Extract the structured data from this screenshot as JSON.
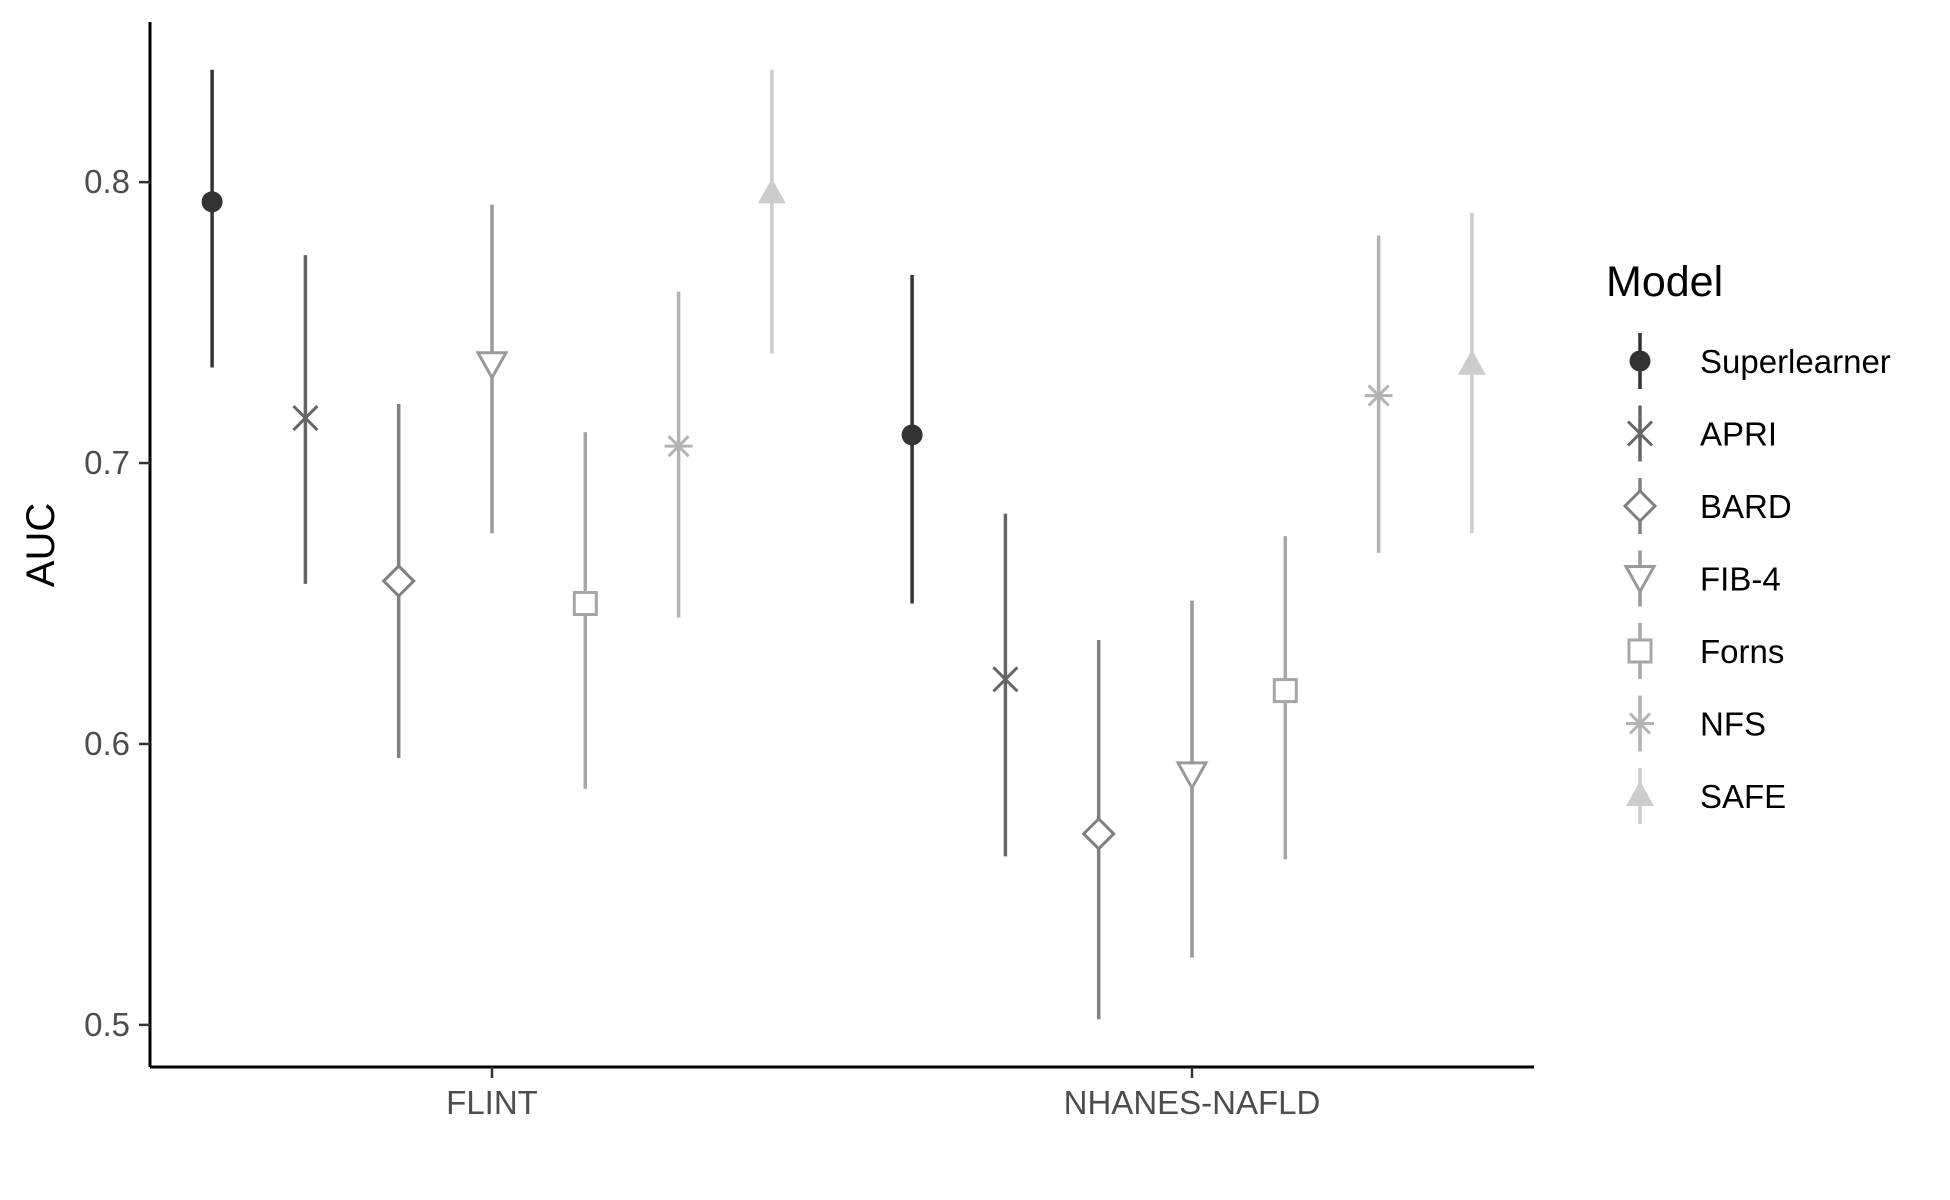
{
  "chart_data": {
    "type": "scatter",
    "subtype": "pointrange",
    "title": "",
    "xlabel": "",
    "ylabel": "AUC",
    "categories": [
      "FLINT",
      "NHANES-NAFLD"
    ],
    "ylim": [
      0.485,
      0.857
    ],
    "yticks": [
      "0.5",
      "0.6",
      "0.7",
      "0.8"
    ],
    "grid": false,
    "legend": {
      "title": "Model",
      "position": "right"
    },
    "series": [
      {
        "name": "Superlearner",
        "shape": "filled-circle",
        "color": "#333333",
        "values": [
          0.793,
          0.71
        ],
        "lower": [
          0.734,
          0.65
        ],
        "upper": [
          0.84,
          0.767
        ]
      },
      {
        "name": "APRI",
        "shape": "x",
        "color": "#666666",
        "values": [
          0.716,
          0.623
        ],
        "lower": [
          0.657,
          0.56
        ],
        "upper": [
          0.774,
          0.682
        ]
      },
      {
        "name": "BARD",
        "shape": "open-diamond",
        "color": "#808080",
        "values": [
          0.658,
          0.568
        ],
        "lower": [
          0.595,
          0.502
        ],
        "upper": [
          0.721,
          0.637
        ]
      },
      {
        "name": "FIB-4",
        "shape": "open-triangle-down",
        "color": "#999999",
        "values": [
          0.735,
          0.589
        ],
        "lower": [
          0.675,
          0.524
        ],
        "upper": [
          0.792,
          0.651
        ]
      },
      {
        "name": "Forns",
        "shape": "open-square",
        "color": "#a6a6a6",
        "values": [
          0.65,
          0.619
        ],
        "lower": [
          0.584,
          0.559
        ],
        "upper": [
          0.711,
          0.674
        ]
      },
      {
        "name": "NFS",
        "shape": "asterisk",
        "color": "#b3b3b3",
        "values": [
          0.706,
          0.724
        ],
        "lower": [
          0.645,
          0.668
        ],
        "upper": [
          0.761,
          0.781
        ]
      },
      {
        "name": "SAFE",
        "shape": "filled-triangle-up",
        "color": "#cccccc",
        "values": [
          0.796,
          0.735
        ],
        "lower": [
          0.739,
          0.675
        ],
        "upper": [
          0.84,
          0.789
        ]
      }
    ]
  }
}
